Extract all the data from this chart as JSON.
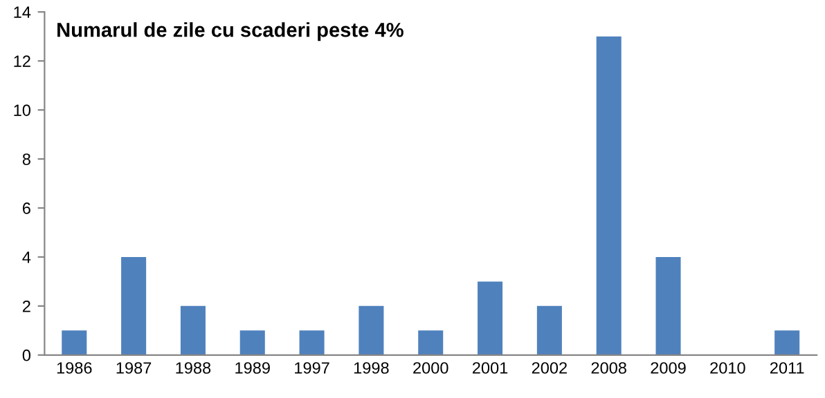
{
  "chart_data": {
    "type": "bar",
    "title": "Numarul de zile cu scaderi peste 4%",
    "categories": [
      "1986",
      "1987",
      "1988",
      "1989",
      "1997",
      "1998",
      "2000",
      "2001",
      "2002",
      "2008",
      "2009",
      "2010",
      "2011"
    ],
    "values": [
      1,
      4,
      2,
      1,
      1,
      2,
      1,
      3,
      2,
      13,
      4,
      0,
      1
    ],
    "color": "#4f81bd",
    "ylim": [
      0,
      14
    ],
    "yticks": [
      0,
      2,
      4,
      6,
      8,
      10,
      12,
      14
    ],
    "grid": false,
    "legend": false
  }
}
